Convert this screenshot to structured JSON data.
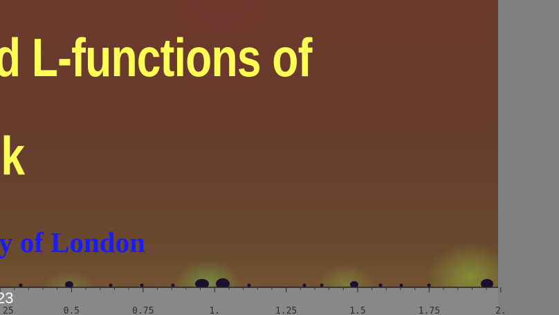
{
  "slide": {
    "title_line_1": "d L-functions of",
    "title_line_2": "nk",
    "affiliation": "y of London",
    "slide_number": "23"
  },
  "axis": {
    "tick_labels": [
      "25",
      "0.5",
      "0.75",
      "1.",
      "1.25",
      "1.5",
      "1.75",
      "2."
    ]
  },
  "colors": {
    "title": "#ffff55",
    "affiliation": "#1a1aff",
    "background_outer": "#7f7f7f"
  }
}
